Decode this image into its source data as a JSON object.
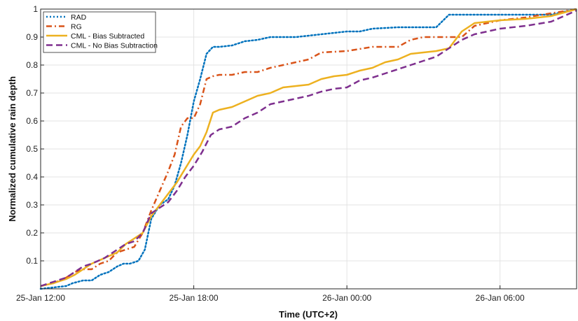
{
  "chart_data": {
    "type": "line",
    "xlabel": "Time (UTC+2)",
    "ylabel": "Normalized cumulative rain depth",
    "x_ticks": [
      {
        "t": 0,
        "label": "25-Jan 12:00"
      },
      {
        "t": 6,
        "label": "25-Jan 18:00"
      },
      {
        "t": 12,
        "label": "26-Jan 00:00"
      },
      {
        "t": 18,
        "label": "26-Jan 06:00"
      }
    ],
    "xlim": [
      "25-Jan 12:00",
      "26-Jan 09:00"
    ],
    "ylim": [
      0,
      1
    ],
    "y_ticks": [
      0.1,
      0.2,
      0.3,
      0.4,
      0.5,
      0.6,
      0.7,
      0.8,
      0.9,
      1
    ],
    "y_tick_labels": [
      "0.1",
      "0.2",
      "0.3",
      "0.4",
      "0.5",
      "0.6",
      "0.7",
      "0.8",
      "0.9",
      "1"
    ],
    "grid": true,
    "legend_position": "top-left",
    "series": [
      {
        "name": "RAD",
        "color": "#0072BD",
        "style": "dotted",
        "x": [
          "25-Jan 12:00",
          "25-Jan 12:30",
          "25-Jan 13:00",
          "25-Jan 13:15",
          "25-Jan 13:40",
          "25-Jan 14:00",
          "25-Jan 14:20",
          "25-Jan 14:40",
          "25-Jan 15:00",
          "25-Jan 15:15",
          "25-Jan 15:30",
          "25-Jan 15:50",
          "25-Jan 16:05",
          "25-Jan 16:20",
          "25-Jan 16:40",
          "25-Jan 17:00",
          "25-Jan 17:15",
          "25-Jan 17:30",
          "25-Jan 17:45",
          "25-Jan 18:00",
          "25-Jan 18:15",
          "25-Jan 18:30",
          "25-Jan 18:45",
          "25-Jan 19:00",
          "25-Jan 19:30",
          "25-Jan 20:00",
          "25-Jan 20:30",
          "25-Jan 21:00",
          "25-Jan 21:30",
          "25-Jan 22:00",
          "25-Jan 23:00",
          "26-Jan 00:00",
          "26-Jan 00:30",
          "26-Jan 01:00",
          "26-Jan 02:00",
          "26-Jan 03:00",
          "26-Jan 03:30",
          "26-Jan 04:00",
          "26-Jan 05:00",
          "26-Jan 06:00",
          "26-Jan 07:00",
          "26-Jan 08:00",
          "26-Jan 08:30",
          "26-Jan 09:00"
        ],
        "y": [
          0,
          0.005,
          0.01,
          0.02,
          0.03,
          0.03,
          0.05,
          0.06,
          0.08,
          0.09,
          0.09,
          0.1,
          0.14,
          0.25,
          0.3,
          0.32,
          0.37,
          0.45,
          0.55,
          0.67,
          0.75,
          0.84,
          0.865,
          0.865,
          0.87,
          0.885,
          0.89,
          0.9,
          0.9,
          0.9,
          0.91,
          0.92,
          0.92,
          0.93,
          0.935,
          0.935,
          0.935,
          0.98,
          0.98,
          0.98,
          0.98,
          0.98,
          0.99,
          1.0
        ]
      },
      {
        "name": "RG",
        "color": "#D95319",
        "style": "dashdot",
        "x": [
          "25-Jan 12:00",
          "25-Jan 12:30",
          "25-Jan 13:00",
          "25-Jan 13:20",
          "25-Jan 13:40",
          "25-Jan 14:00",
          "25-Jan 14:20",
          "25-Jan 14:40",
          "25-Jan 15:00",
          "25-Jan 15:20",
          "25-Jan 15:40",
          "25-Jan 16:00",
          "25-Jan 16:20",
          "25-Jan 16:40",
          "25-Jan 17:00",
          "25-Jan 17:15",
          "25-Jan 17:30",
          "25-Jan 17:45",
          "25-Jan 18:00",
          "25-Jan 18:15",
          "25-Jan 18:30",
          "25-Jan 18:45",
          "25-Jan 19:00",
          "25-Jan 19:30",
          "25-Jan 20:00",
          "25-Jan 20:30",
          "25-Jan 21:00",
          "25-Jan 21:30",
          "25-Jan 22:00",
          "25-Jan 22:30",
          "25-Jan 23:00",
          "26-Jan 00:00",
          "26-Jan 01:00",
          "26-Jan 02:00",
          "26-Jan 02:30",
          "26-Jan 03:00",
          "26-Jan 04:00",
          "26-Jan 04:30",
          "26-Jan 05:00",
          "26-Jan 06:00",
          "26-Jan 07:00",
          "26-Jan 08:00",
          "26-Jan 09:00"
        ],
        "y": [
          0.01,
          0.02,
          0.04,
          0.06,
          0.07,
          0.07,
          0.09,
          0.1,
          0.13,
          0.14,
          0.15,
          0.2,
          0.28,
          0.35,
          0.42,
          0.48,
          0.58,
          0.61,
          0.61,
          0.66,
          0.75,
          0.76,
          0.765,
          0.765,
          0.775,
          0.775,
          0.79,
          0.8,
          0.81,
          0.82,
          0.845,
          0.85,
          0.865,
          0.865,
          0.89,
          0.9,
          0.9,
          0.9,
          0.94,
          0.96,
          0.97,
          0.985,
          1.0
        ]
      },
      {
        "name": "CML - Bias Subtracted",
        "color": "#EDB120",
        "style": "solid",
        "x": [
          "25-Jan 12:00",
          "25-Jan 12:30",
          "25-Jan 13:00",
          "25-Jan 13:20",
          "25-Jan 13:40",
          "25-Jan 14:00",
          "25-Jan 14:30",
          "25-Jan 15:00",
          "25-Jan 15:20",
          "25-Jan 15:40",
          "25-Jan 16:00",
          "25-Jan 16:20",
          "25-Jan 16:40",
          "25-Jan 17:00",
          "25-Jan 17:20",
          "25-Jan 17:40",
          "25-Jan 18:00",
          "25-Jan 18:15",
          "25-Jan 18:30",
          "25-Jan 18:45",
          "25-Jan 19:00",
          "25-Jan 19:30",
          "25-Jan 20:00",
          "25-Jan 20:30",
          "25-Jan 21:00",
          "25-Jan 21:30",
          "25-Jan 22:00",
          "25-Jan 22:30",
          "25-Jan 23:00",
          "25-Jan 23:30",
          "26-Jan 00:00",
          "26-Jan 00:30",
          "26-Jan 01:00",
          "26-Jan 01:30",
          "26-Jan 02:00",
          "26-Jan 02:30",
          "26-Jan 03:00",
          "26-Jan 03:30",
          "26-Jan 04:00",
          "26-Jan 04:30",
          "26-Jan 05:00",
          "26-Jan 06:00",
          "26-Jan 07:00",
          "26-Jan 08:00",
          "26-Jan 09:00"
        ],
        "y": [
          0.01,
          0.02,
          0.035,
          0.05,
          0.07,
          0.09,
          0.11,
          0.13,
          0.16,
          0.18,
          0.2,
          0.26,
          0.3,
          0.34,
          0.38,
          0.43,
          0.48,
          0.51,
          0.56,
          0.63,
          0.64,
          0.65,
          0.67,
          0.69,
          0.7,
          0.72,
          0.725,
          0.73,
          0.75,
          0.76,
          0.765,
          0.78,
          0.79,
          0.81,
          0.82,
          0.84,
          0.845,
          0.85,
          0.86,
          0.92,
          0.95,
          0.96,
          0.965,
          0.975,
          1.0
        ]
      },
      {
        "name": "CML - No Bias Subtraction",
        "color": "#7E2F8E",
        "style": "dashed",
        "x": [
          "25-Jan 12:00",
          "25-Jan 12:30",
          "25-Jan 13:00",
          "25-Jan 13:20",
          "25-Jan 13:40",
          "25-Jan 14:00",
          "25-Jan 14:30",
          "25-Jan 15:00",
          "25-Jan 15:20",
          "25-Jan 15:40",
          "25-Jan 16:00",
          "25-Jan 16:20",
          "25-Jan 16:40",
          "25-Jan 17:00",
          "25-Jan 17:20",
          "25-Jan 17:40",
          "25-Jan 18:00",
          "25-Jan 18:20",
          "25-Jan 18:40",
          "25-Jan 19:00",
          "25-Jan 19:30",
          "25-Jan 20:00",
          "25-Jan 20:30",
          "25-Jan 21:00",
          "25-Jan 21:30",
          "25-Jan 22:00",
          "25-Jan 22:30",
          "25-Jan 23:00",
          "25-Jan 23:30",
          "26-Jan 00:00",
          "26-Jan 00:30",
          "26-Jan 01:00",
          "26-Jan 01:30",
          "26-Jan 02:00",
          "26-Jan 02:30",
          "26-Jan 03:00",
          "26-Jan 03:30",
          "26-Jan 04:00",
          "26-Jan 04:30",
          "26-Jan 05:00",
          "26-Jan 06:00",
          "26-Jan 07:00",
          "26-Jan 08:00",
          "26-Jan 09:00"
        ],
        "y": [
          0.01,
          0.025,
          0.04,
          0.06,
          0.08,
          0.09,
          0.11,
          0.14,
          0.16,
          0.17,
          0.2,
          0.27,
          0.29,
          0.31,
          0.35,
          0.4,
          0.44,
          0.49,
          0.55,
          0.57,
          0.58,
          0.61,
          0.63,
          0.66,
          0.67,
          0.68,
          0.69,
          0.705,
          0.715,
          0.72,
          0.745,
          0.755,
          0.77,
          0.785,
          0.8,
          0.815,
          0.83,
          0.86,
          0.89,
          0.91,
          0.93,
          0.94,
          0.955,
          0.995
        ]
      }
    ]
  }
}
